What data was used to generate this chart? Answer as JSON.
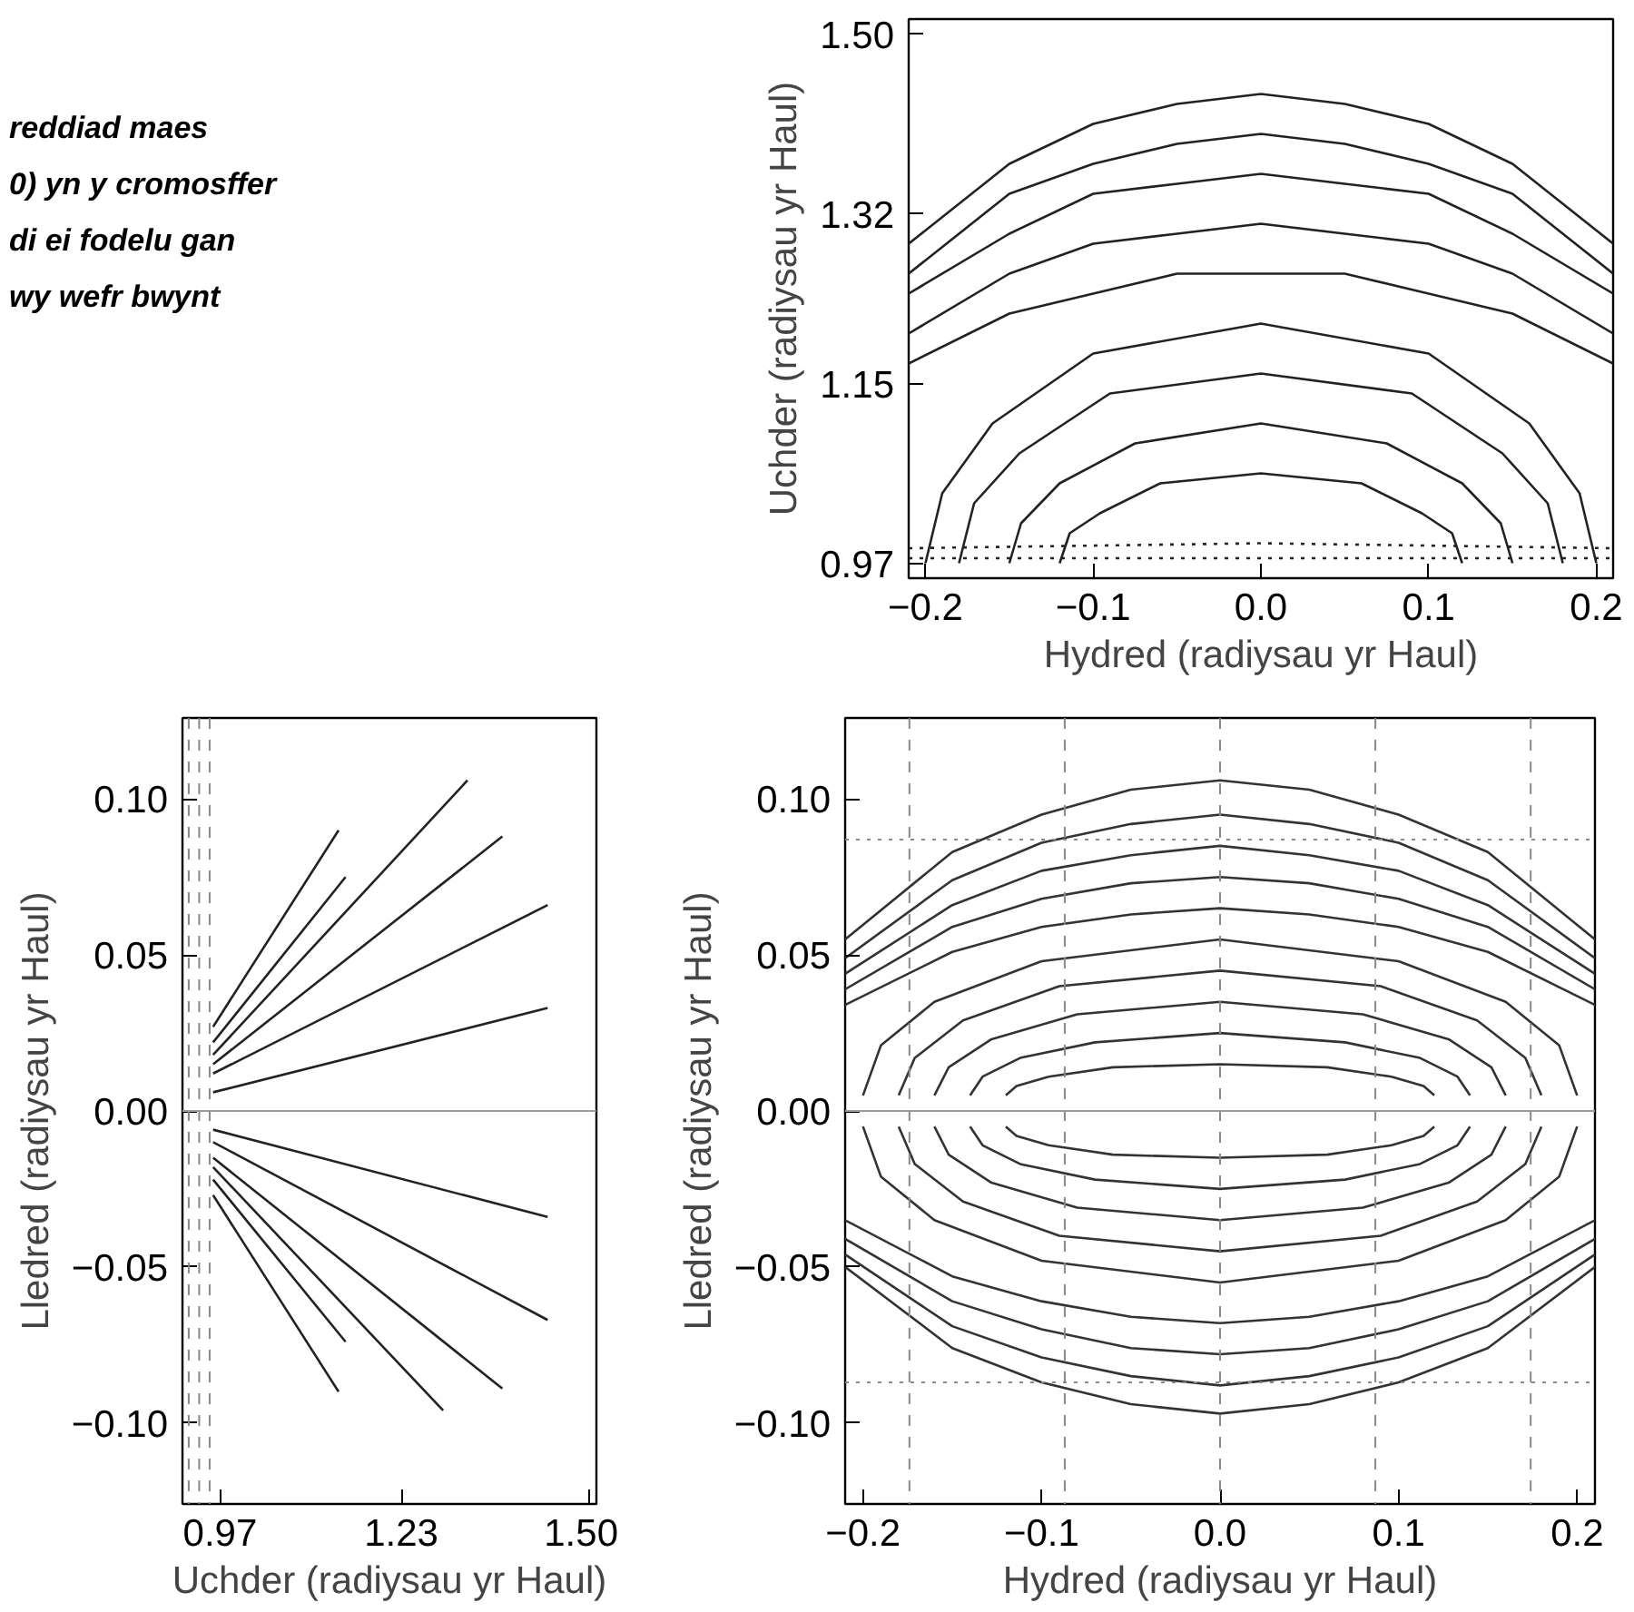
{
  "chart_data": [
    {
      "type": "line",
      "annotations": [
        "reddiad maes",
        "0) yn y cromosffer",
        "di ei fodelu gan",
        "wy wefr bwynt"
      ],
      "xlabel": "Hydred (radiysau yr Haul)",
      "ylabel": "Uchder (radiysau yr Haul)",
      "xlim": [
        -0.21,
        0.21
      ],
      "ylim": [
        0.955,
        1.515
      ],
      "xticks": [
        {
          "value": -0.2,
          "label": "−0.2"
        },
        {
          "value": -0.1,
          "label": "−0.1"
        },
        {
          "value": 0,
          "label": "0.0"
        },
        0.1,
        0.2
      ],
      "yticks": [
        0.97,
        1.15,
        1.32,
        {
          "value": 1.5,
          "label": "1.50"
        }
      ],
      "color": "#222222",
      "line_style": "solid",
      "marker": "none",
      "series": [
        {
          "x": [
            -0.21,
            -0.15,
            -0.1,
            -0.05,
            0,
            0.05,
            0.1,
            0.15,
            0.21
          ],
          "values": [
            1.29,
            1.37,
            1.41,
            1.43,
            1.44,
            1.43,
            1.41,
            1.37,
            1.29
          ]
        },
        {
          "x": [
            -0.21,
            -0.15,
            -0.1,
            -0.05,
            0,
            0.05,
            0.1,
            0.15,
            0.21
          ],
          "values": [
            1.26,
            1.34,
            1.37,
            1.39,
            1.4,
            1.39,
            1.37,
            1.34,
            1.26
          ]
        },
        {
          "x": [
            -0.21,
            -0.15,
            -0.1,
            -0.05,
            0,
            0.05,
            0.1,
            0.15,
            0.21
          ],
          "values": [
            1.24,
            1.3,
            1.34,
            1.35,
            1.36,
            1.35,
            1.34,
            1.3,
            1.24
          ]
        },
        {
          "x": [
            -0.21,
            -0.15,
            -0.1,
            -0.05,
            0,
            0.05,
            0.1,
            0.15,
            0.21
          ],
          "values": [
            1.2,
            1.26,
            1.29,
            1.3,
            1.31,
            1.3,
            1.29,
            1.26,
            1.2
          ]
        },
        {
          "x": [
            -0.21,
            -0.15,
            -0.1,
            -0.05,
            0,
            0.05,
            0.1,
            0.15,
            0.21
          ],
          "values": [
            1.17,
            1.22,
            1.24,
            1.26,
            1.26,
            1.26,
            1.24,
            1.22,
            1.17
          ]
        },
        {
          "x": [
            -0.2,
            -0.19,
            -0.16,
            -0.1,
            0,
            0.1,
            0.16,
            0.19,
            0.2
          ],
          "values": [
            0.97,
            1.04,
            1.11,
            1.18,
            1.21,
            1.18,
            1.11,
            1.04,
            0.97
          ]
        },
        {
          "x": [
            -0.18,
            -0.171,
            -0.144,
            -0.09,
            0,
            0.09,
            0.144,
            0.171,
            0.18
          ],
          "values": [
            0.97,
            1.03,
            1.08,
            1.14,
            1.16,
            1.14,
            1.08,
            1.03,
            0.97
          ]
        },
        {
          "x": [
            -0.15,
            -0.143,
            -0.12,
            -0.075,
            0,
            0.075,
            0.12,
            0.143,
            0.15
          ],
          "values": [
            0.97,
            1.01,
            1.05,
            1.09,
            1.11,
            1.09,
            1.05,
            1.01,
            0.97
          ]
        },
        {
          "x": [
            -0.12,
            -0.114,
            -0.096,
            -0.06,
            0,
            0.06,
            0.096,
            0.114,
            0.12
          ],
          "values": [
            0.97,
            1.0,
            1.02,
            1.05,
            1.06,
            1.05,
            1.02,
            1.0,
            0.97
          ]
        },
        {
          "x": [
            -0.21,
            0,
            0.21
          ],
          "values": [
            0.985,
            0.99,
            0.985
          ],
          "line_style": "dotted"
        },
        {
          "x": [
            -0.21,
            0,
            0.21
          ],
          "values": [
            0.975,
            0.975,
            0.975
          ],
          "line_style": "dotted"
        }
      ]
    },
    {
      "type": "line",
      "xlabel": "Uchder (radiysau yr Haul)",
      "ylabel": "Lledred (radiysau yr Haul)",
      "xlim": [
        0.916,
        1.51
      ],
      "ylim": [
        -0.126,
        0.126
      ],
      "xticks": [
        0.97,
        1.23,
        {
          "value": 1.5,
          "label": "1.50"
        }
      ],
      "yticks": [
        {
          "value": -0.1,
          "label": "−0.10"
        },
        {
          "value": -0.05,
          "label": "−0.05"
        },
        {
          "value": 0,
          "label": "0.00"
        },
        0.05,
        {
          "value": 0.1,
          "label": "0.10"
        }
      ],
      "color": "#222222",
      "line_style": "solid",
      "marker": "none",
      "ref_lines": [
        {
          "axis": "x",
          "value": 0.925,
          "color": "#888888",
          "line_style": "dashed"
        },
        {
          "axis": "x",
          "value": 0.94,
          "color": "#888888",
          "line_style": "dashed"
        },
        {
          "axis": "x",
          "value": 0.955,
          "color": "#888888",
          "line_style": "dashed"
        },
        {
          "axis": "y",
          "value": 0,
          "color": "#999999",
          "line_style": "solid"
        }
      ],
      "series": [
        {
          "x": [
            0.96,
            1.14
          ],
          "values": [
            0.027,
            0.09
          ]
        },
        {
          "x": [
            0.96,
            1.15
          ],
          "values": [
            0.022,
            0.075
          ]
        },
        {
          "x": [
            0.96,
            1.325
          ],
          "values": [
            0.018,
            0.106
          ]
        },
        {
          "x": [
            0.96,
            1.375
          ],
          "values": [
            0.015,
            0.088
          ]
        },
        {
          "x": [
            0.96,
            1.44
          ],
          "values": [
            0.012,
            0.066
          ]
        },
        {
          "x": [
            0.96,
            1.44
          ],
          "values": [
            0.006,
            0.033
          ]
        },
        {
          "x": [
            0.96,
            1.44
          ],
          "values": [
            -0.006,
            -0.034
          ]
        },
        {
          "x": [
            0.96,
            1.44
          ],
          "values": [
            -0.01,
            -0.067
          ]
        },
        {
          "x": [
            0.96,
            1.375
          ],
          "values": [
            -0.015,
            -0.089
          ]
        },
        {
          "x": [
            0.96,
            1.29
          ],
          "values": [
            -0.018,
            -0.096
          ]
        },
        {
          "x": [
            0.96,
            1.15
          ],
          "values": [
            -0.022,
            -0.074
          ]
        },
        {
          "x": [
            0.96,
            1.14
          ],
          "values": [
            -0.027,
            -0.09
          ]
        }
      ]
    },
    {
      "type": "line",
      "xlabel": "Hydred (radiysau yr Haul)",
      "ylabel": "Lledred (radiysau yr Haul)",
      "xlim": [
        -0.21,
        0.21
      ],
      "ylim": [
        -0.126,
        0.126
      ],
      "xticks": [
        {
          "value": -0.2,
          "label": "−0.2"
        },
        {
          "value": -0.1,
          "label": "−0.1"
        },
        {
          "value": 0,
          "label": "0.0"
        },
        0.1,
        0.2
      ],
      "yticks": [
        {
          "value": -0.1,
          "label": "−0.10"
        },
        {
          "value": -0.05,
          "label": "−0.05"
        },
        {
          "value": 0,
          "label": "0.00"
        },
        0.05,
        {
          "value": 0.1,
          "label": "0.10"
        }
      ],
      "color": "#333333",
      "line_style": "solid",
      "marker": "none",
      "ref_lines": [
        {
          "axis": "x",
          "value": -0.174,
          "color": "#888888",
          "line_style": "dashed"
        },
        {
          "axis": "x",
          "value": -0.087,
          "color": "#888888",
          "line_style": "dashed"
        },
        {
          "axis": "x",
          "value": 0,
          "color": "#888888",
          "line_style": "dashed"
        },
        {
          "axis": "x",
          "value": 0.087,
          "color": "#888888",
          "line_style": "dashed"
        },
        {
          "axis": "x",
          "value": 0.174,
          "color": "#888888",
          "line_style": "dashed"
        },
        {
          "axis": "y",
          "value": 0.087,
          "color": "#888888",
          "line_style": "dotted"
        },
        {
          "axis": "y",
          "value": -0.087,
          "color": "#888888",
          "line_style": "dotted"
        },
        {
          "axis": "y",
          "value": 0,
          "color": "#999999",
          "line_style": "solid"
        }
      ],
      "series": [
        {
          "x": [
            -0.21,
            -0.15,
            -0.1,
            -0.05,
            0,
            0.05,
            0.1,
            0.15,
            0.21
          ],
          "values": [
            0.055,
            0.083,
            0.095,
            0.103,
            0.106,
            0.103,
            0.095,
            0.083,
            0.055
          ]
        },
        {
          "x": [
            -0.21,
            -0.15,
            -0.1,
            -0.05,
            0,
            0.05,
            0.1,
            0.15,
            0.21
          ],
          "values": [
            0.049,
            0.074,
            0.086,
            0.092,
            0.095,
            0.092,
            0.086,
            0.074,
            0.049
          ]
        },
        {
          "x": [
            -0.21,
            -0.15,
            -0.1,
            -0.05,
            0,
            0.05,
            0.1,
            0.15,
            0.21
          ],
          "values": [
            0.044,
            0.066,
            0.077,
            0.082,
            0.085,
            0.082,
            0.077,
            0.066,
            0.044
          ]
        },
        {
          "x": [
            -0.21,
            -0.15,
            -0.1,
            -0.05,
            0,
            0.05,
            0.1,
            0.15,
            0.21
          ],
          "values": [
            0.039,
            0.059,
            0.068,
            0.073,
            0.075,
            0.073,
            0.068,
            0.059,
            0.039
          ]
        },
        {
          "x": [
            -0.21,
            -0.15,
            -0.1,
            -0.05,
            0,
            0.05,
            0.1,
            0.15,
            0.21
          ],
          "values": [
            0.034,
            0.051,
            0.059,
            0.063,
            0.065,
            0.063,
            0.059,
            0.051,
            0.034
          ]
        },
        {
          "x": [
            -0.2,
            -0.19,
            -0.16,
            -0.1,
            0,
            0.1,
            0.16,
            0.19,
            0.2
          ],
          "values": [
            0.005,
            0.021,
            0.035,
            0.048,
            0.055,
            0.048,
            0.035,
            0.021,
            0.005
          ]
        },
        {
          "x": [
            -0.18,
            -0.171,
            -0.144,
            -0.09,
            0,
            0.09,
            0.144,
            0.171,
            0.18
          ],
          "values": [
            0.005,
            0.017,
            0.029,
            0.04,
            0.045,
            0.04,
            0.029,
            0.017,
            0.005
          ]
        },
        {
          "x": [
            -0.16,
            -0.152,
            -0.128,
            -0.08,
            0,
            0.08,
            0.128,
            0.152,
            0.16
          ],
          "values": [
            0.005,
            0.014,
            0.023,
            0.031,
            0.035,
            0.031,
            0.023,
            0.014,
            0.005
          ]
        },
        {
          "x": [
            -0.14,
            -0.133,
            -0.112,
            -0.07,
            0,
            0.07,
            0.112,
            0.133,
            0.14
          ],
          "values": [
            0.005,
            0.011,
            0.017,
            0.022,
            0.025,
            0.022,
            0.017,
            0.011,
            0.005
          ]
        },
        {
          "x": [
            -0.12,
            -0.114,
            -0.096,
            -0.06,
            0,
            0.06,
            0.096,
            0.114,
            0.12
          ],
          "values": [
            0.005,
            0.008,
            0.011,
            0.014,
            0.015,
            0.014,
            0.011,
            0.008,
            0.005
          ]
        },
        {
          "x": [
            -0.21,
            -0.15,
            -0.1,
            -0.05,
            0,
            0.05,
            0.1,
            0.15,
            0.21
          ],
          "values": [
            -0.05,
            -0.076,
            -0.087,
            -0.094,
            -0.097,
            -0.094,
            -0.087,
            -0.076,
            -0.05
          ]
        },
        {
          "x": [
            -0.21,
            -0.15,
            -0.1,
            -0.05,
            0,
            0.05,
            0.1,
            0.15,
            0.21
          ],
          "values": [
            -0.046,
            -0.069,
            -0.079,
            -0.085,
            -0.088,
            -0.085,
            -0.079,
            -0.069,
            -0.046
          ]
        },
        {
          "x": [
            -0.21,
            -0.15,
            -0.1,
            -0.05,
            0,
            0.05,
            0.1,
            0.15,
            0.21
          ],
          "values": [
            -0.041,
            -0.061,
            -0.07,
            -0.076,
            -0.078,
            -0.076,
            -0.07,
            -0.061,
            -0.041
          ]
        },
        {
          "x": [
            -0.21,
            -0.15,
            -0.1,
            -0.05,
            0,
            0.05,
            0.1,
            0.15,
            0.21
          ],
          "values": [
            -0.035,
            -0.053,
            -0.061,
            -0.066,
            -0.068,
            -0.066,
            -0.061,
            -0.053,
            -0.035
          ]
        },
        {
          "x": [
            -0.2,
            -0.19,
            -0.16,
            -0.1,
            0,
            0.1,
            0.16,
            0.19,
            0.2
          ],
          "values": [
            -0.005,
            -0.021,
            -0.035,
            -0.048,
            -0.055,
            -0.048,
            -0.035,
            -0.021,
            -0.005
          ]
        },
        {
          "x": [
            -0.18,
            -0.171,
            -0.144,
            -0.09,
            0,
            0.09,
            0.144,
            0.171,
            0.18
          ],
          "values": [
            -0.005,
            -0.017,
            -0.029,
            -0.04,
            -0.045,
            -0.04,
            -0.029,
            -0.017,
            -0.005
          ]
        },
        {
          "x": [
            -0.16,
            -0.152,
            -0.128,
            -0.08,
            0,
            0.08,
            0.128,
            0.152,
            0.16
          ],
          "values": [
            -0.005,
            -0.014,
            -0.023,
            -0.031,
            -0.035,
            -0.031,
            -0.023,
            -0.014,
            -0.005
          ]
        },
        {
          "x": [
            -0.14,
            -0.133,
            -0.112,
            -0.07,
            0,
            0.07,
            0.112,
            0.133,
            0.14
          ],
          "values": [
            -0.005,
            -0.011,
            -0.017,
            -0.022,
            -0.025,
            -0.022,
            -0.017,
            -0.011,
            -0.005
          ]
        },
        {
          "x": [
            -0.12,
            -0.114,
            -0.096,
            -0.06,
            0,
            0.06,
            0.096,
            0.114,
            0.12
          ],
          "values": [
            -0.005,
            -0.008,
            -0.011,
            -0.014,
            -0.015,
            -0.014,
            -0.011,
            -0.008,
            -0.005
          ]
        }
      ]
    }
  ]
}
